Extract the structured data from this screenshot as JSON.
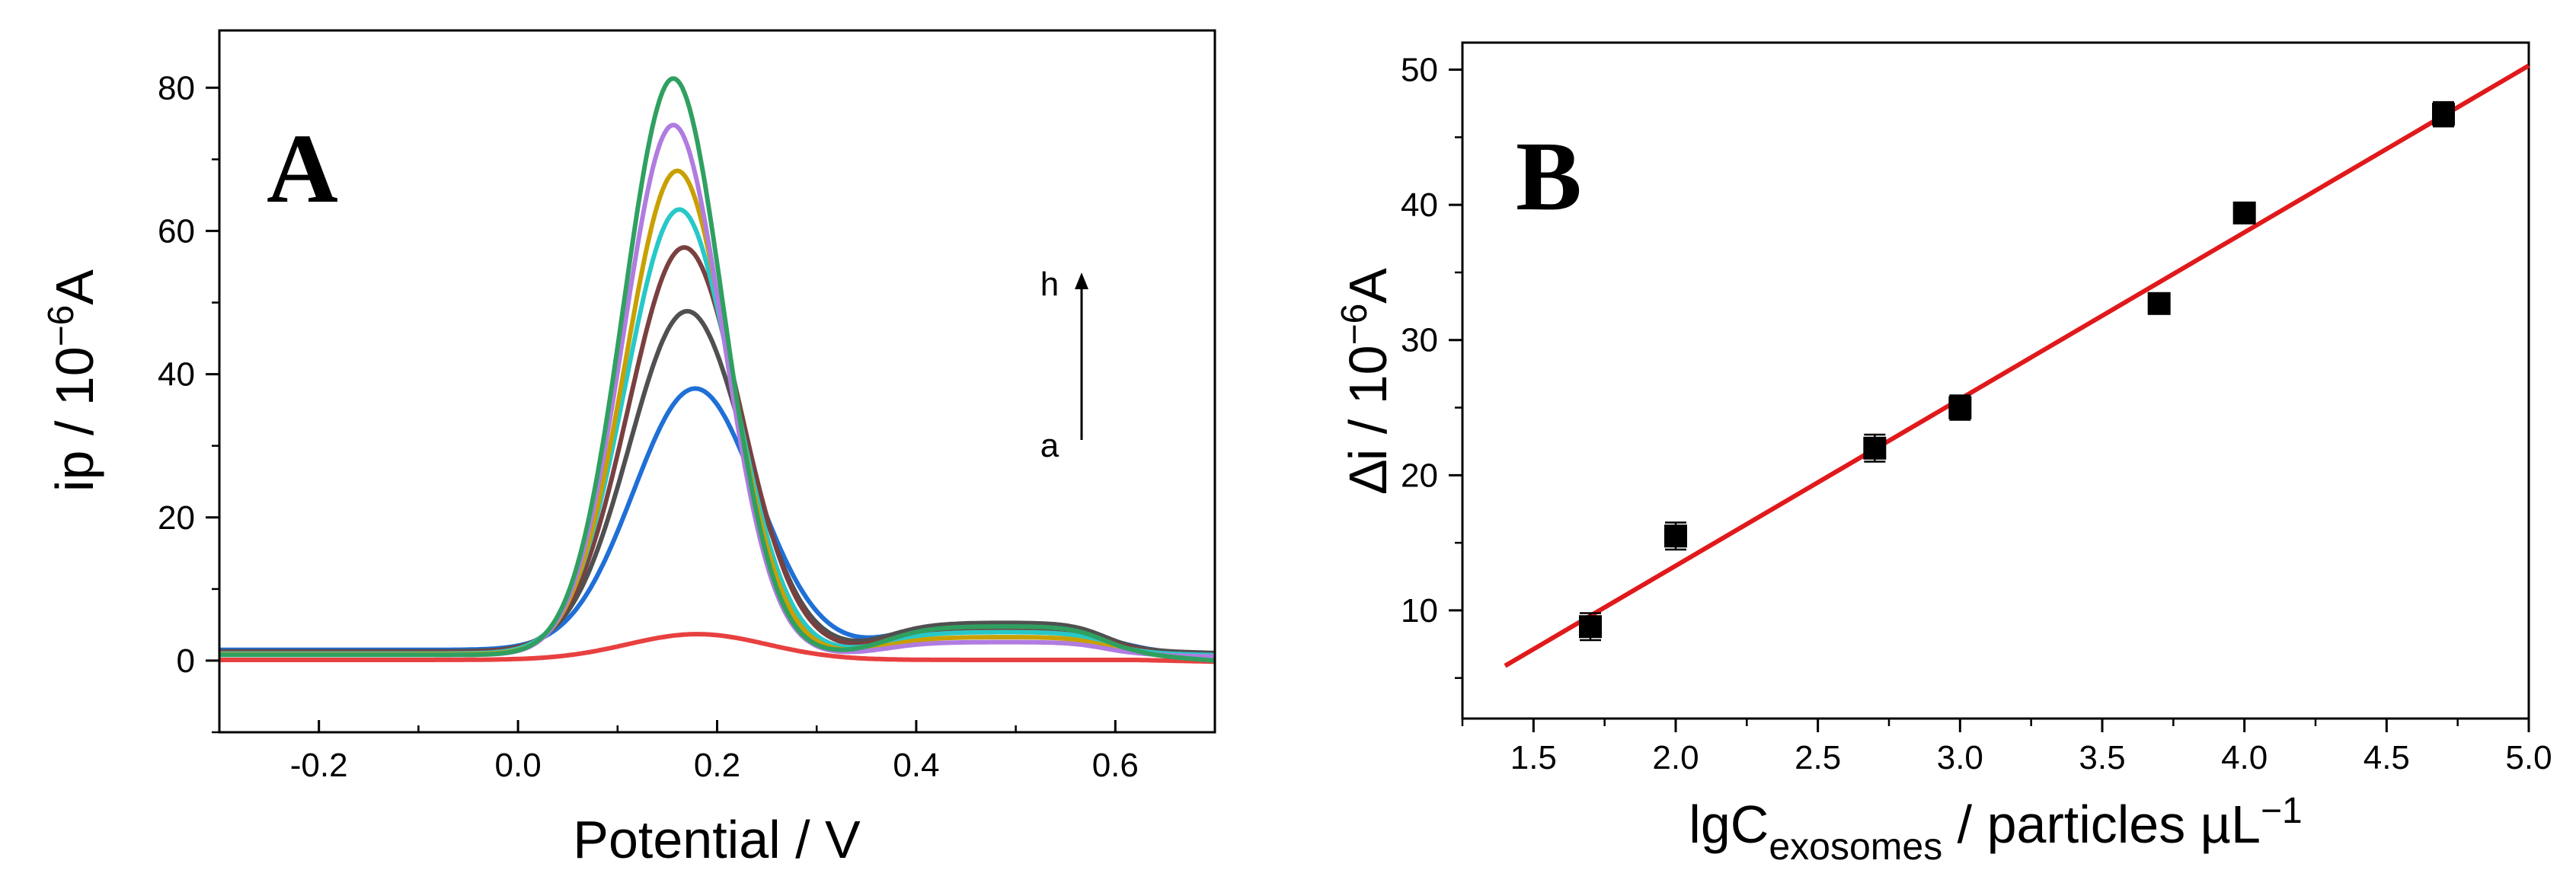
{
  "chart_data": [
    {
      "type": "line",
      "panel_label": "A",
      "xlabel": "Potential / V",
      "ylabel": "ip / 10⁻⁶A",
      "ylabel_parts": {
        "main": "ip / 10",
        "sup": "−6",
        "unit": "A"
      },
      "xlim": [
        -0.3,
        0.7
      ],
      "ylim": [
        -10,
        88
      ],
      "x_ticks": [
        -0.2,
        0.0,
        0.2,
        0.4,
        0.6
      ],
      "x_tick_labels": [
        "-0.2",
        "0.0",
        "0.2",
        "0.4",
        "0.6"
      ],
      "y_ticks": [
        0,
        20,
        40,
        60,
        80
      ],
      "y_tick_labels": [
        "0",
        "20",
        "40",
        "60",
        "80"
      ],
      "grid": false,
      "annotation": {
        "top_label": "h",
        "bottom_label": "a"
      },
      "series": [
        {
          "color": "#e84040",
          "baseline": 0.1,
          "peak": 3.6,
          "center": 0.18,
          "width": 0.07,
          "hump": 0.0
        },
        {
          "color": "#1f6fd6",
          "baseline": 1.5,
          "peak": 36.5,
          "center": 0.178,
          "width": 0.062,
          "hump": 3.3
        },
        {
          "color": "#505050",
          "baseline": 1.3,
          "peak": 47.5,
          "center": 0.17,
          "width": 0.058,
          "hump": 4.0
        },
        {
          "color": "#7a4040",
          "baseline": 1.2,
          "peak": 56.5,
          "center": 0.167,
          "width": 0.056,
          "hump": 3.3
        },
        {
          "color": "#28c8c8",
          "baseline": 1.0,
          "peak": 62.0,
          "center": 0.162,
          "width": 0.054,
          "hump": 3.0
        },
        {
          "color": "#c8a000",
          "baseline": 0.9,
          "peak": 67.5,
          "center": 0.16,
          "width": 0.052,
          "hump": 2.4
        },
        {
          "color": "#b07ce0",
          "baseline": 0.8,
          "peak": 74.0,
          "center": 0.156,
          "width": 0.05,
          "hump": 1.8
        },
        {
          "color": "#2fa060",
          "baseline": 0.8,
          "peak": 80.5,
          "center": 0.156,
          "width": 0.05,
          "hump": 4.0
        }
      ]
    },
    {
      "type": "scatter",
      "panel_label": "B",
      "xlabel_parts": {
        "main": "lgC",
        "sub": "exosomes",
        "rest": " / particles µL",
        "sup": "−1"
      },
      "ylabel_parts": {
        "main": "∆i / 10",
        "sup": "−6",
        "unit": "A"
      },
      "xlim": [
        1.25,
        5.0
      ],
      "ylim": [
        2,
        52
      ],
      "x_ticks": [
        1.5,
        2.0,
        2.5,
        3.0,
        3.5,
        4.0,
        4.5,
        5.0
      ],
      "x_tick_labels": [
        "1.5",
        "2.0",
        "2.5",
        "3.0",
        "3.5",
        "4.0",
        "4.5",
        "5.0"
      ],
      "y_ticks": [
        10,
        20,
        30,
        40,
        50
      ],
      "y_tick_labels": [
        "10",
        "20",
        "30",
        "40",
        "50"
      ],
      "grid": false,
      "points": [
        {
          "x": 1.7,
          "y": 8.8,
          "err": 1.0
        },
        {
          "x": 2.0,
          "y": 15.5,
          "err": 1.0
        },
        {
          "x": 2.7,
          "y": 22.0,
          "err": 1.0
        },
        {
          "x": 3.0,
          "y": 25.0,
          "err": 0.9
        },
        {
          "x": 3.7,
          "y": 32.7,
          "err": 0.7
        },
        {
          "x": 4.0,
          "y": 39.4,
          "err": 0.6
        },
        {
          "x": 4.7,
          "y": 46.7,
          "err": 0.9
        }
      ],
      "fit_line": {
        "x": [
          1.4,
          5.0
        ],
        "y": [
          5.9,
          50.3
        ],
        "color": "#e0191b"
      }
    }
  ]
}
